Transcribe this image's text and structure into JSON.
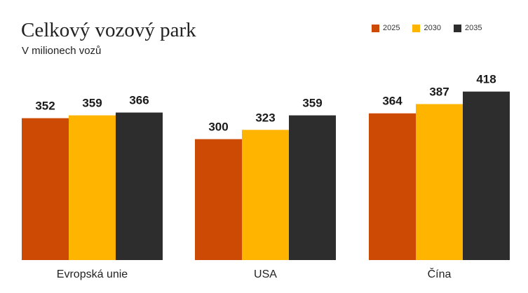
{
  "colors": {
    "2025": "#cc4a04",
    "2030": "#ffb400",
    "2035": "#2d2d2d",
    "baseline": "#dddddd"
  },
  "chart_data": {
    "type": "bar",
    "title": "Celkový vozový park",
    "subtitle": "V milionech vozů",
    "categories": [
      "Evropská unie",
      "USA",
      "Čína"
    ],
    "series": [
      {
        "name": "2025",
        "values": [
          352,
          300,
          364
        ]
      },
      {
        "name": "2030",
        "values": [
          359,
          323,
          387
        ]
      },
      {
        "name": "2035",
        "values": [
          366,
          359,
          418
        ]
      }
    ],
    "data_labels": true,
    "legend_position": "top-right",
    "grid": false
  }
}
